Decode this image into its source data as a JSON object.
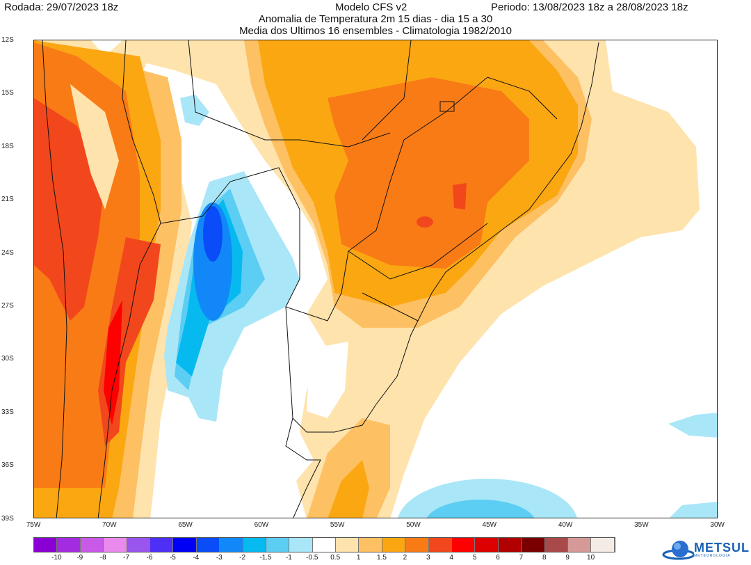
{
  "header": {
    "rodada": "Rodada: 29/07/2023 18z",
    "modelo": "Modelo CFS v2",
    "periodo": "Periodo: 13/08/2023 18z a 28/08/2023 18z",
    "subtitle1": "Anomalia de Temperatura 2m 15 dias - dia 15 a 30",
    "subtitle2": "Media dos Ultimos 16 ensembles - Climatologia 1982/2010"
  },
  "axes": {
    "lat_labels": [
      "12S",
      "15S",
      "18S",
      "21S",
      "24S",
      "27S",
      "30S",
      "33S",
      "36S",
      "39S"
    ],
    "lon_labels": [
      "75W",
      "70W",
      "65W",
      "60W",
      "55W",
      "50W",
      "45W",
      "40W",
      "35W",
      "30W"
    ]
  },
  "legend": {
    "colors": [
      "#8a00d4",
      "#a32be0",
      "#c95ae8",
      "#e98aec",
      "#9a55ee",
      "#4d2ff5",
      "#0000f5",
      "#0a4cf7",
      "#1288f8",
      "#06baf0",
      "#5ccdf3",
      "#a9e6f8",
      "#ffffff",
      "#ffe3ad",
      "#fdc062",
      "#fba712",
      "#f97b16",
      "#f2471c",
      "#fe0000",
      "#dc0000",
      "#b00000",
      "#7a0000",
      "#a84a4a",
      "#d59a98",
      "#f4ece4"
    ],
    "labels": [
      "-10",
      "-9",
      "-8",
      "-7",
      "-6",
      "-5",
      "-4",
      "-3",
      "-2",
      "-1.5",
      "-1",
      "-0.5",
      "0.5",
      "1",
      "1.5",
      "2",
      "3",
      "4",
      "5",
      "6",
      "7",
      "8",
      "9",
      "10"
    ]
  },
  "logo": {
    "name": "METSUL",
    "tagline": "METEOROLOGIA"
  }
}
